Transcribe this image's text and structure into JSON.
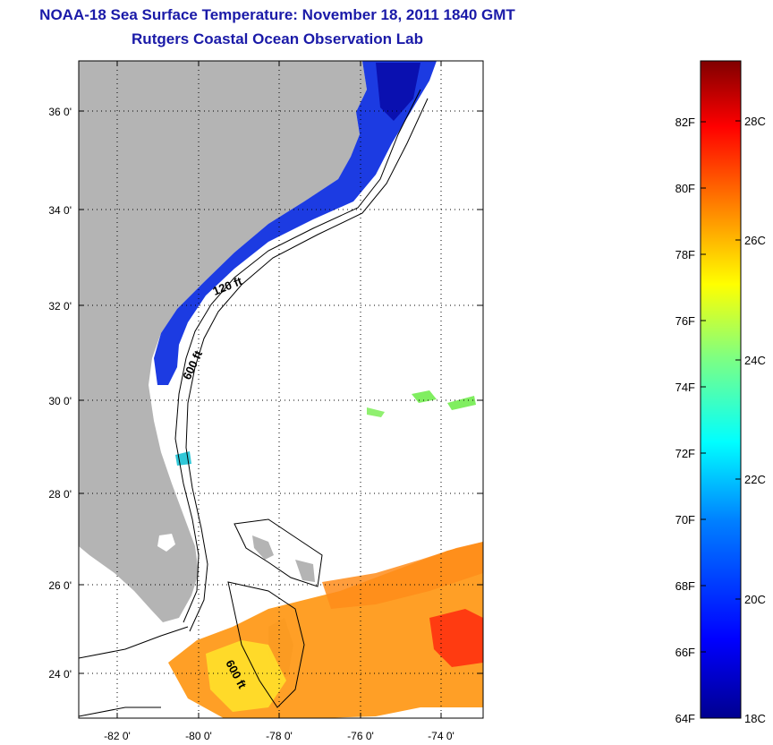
{
  "title": "NOAA-18 Sea Surface Temperature:  November 18, 2011 1840 GMT",
  "subtitle": "Rutgers Coastal Ocean Observation Lab",
  "map": {
    "lon_ticks": [
      "-82 0'",
      "-80 0'",
      "-78 0'",
      "-76 0'",
      "-74 0'"
    ],
    "lat_ticks": [
      "36 0'",
      "34 0'",
      "32 0'",
      "30 0'",
      "28 0'",
      "26 0'",
      "24 0'"
    ],
    "isobath_labels": [
      "120 ft",
      "600 ft",
      "600 ft"
    ],
    "land_color": "#b4b4b4",
    "grid": "dotted"
  },
  "colorbar": {
    "fahrenheit_labels": [
      "82F",
      "80F",
      "78F",
      "76F",
      "74F",
      "72F",
      "70F",
      "68F",
      "66F",
      "64F"
    ],
    "celsius_labels": [
      "28C",
      "26C",
      "24C",
      "22C",
      "20C",
      "18C"
    ],
    "colormap": "jet",
    "colors": [
      "#00008f",
      "#0000ff",
      "#0080ff",
      "#00ffff",
      "#80ff80",
      "#ffff00",
      "#ff8000",
      "#ff0000",
      "#800000"
    ]
  }
}
